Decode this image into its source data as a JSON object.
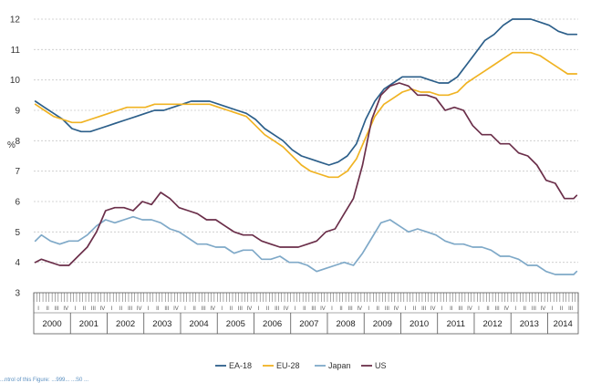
{
  "chart_data": {
    "type": "line",
    "ylabel": "%",
    "ylim": [
      3,
      12
    ],
    "yticks": [
      3,
      4,
      5,
      6,
      7,
      8,
      9,
      10,
      11,
      12
    ],
    "grid": "horizontal-dotted",
    "legend": "bottom",
    "years": [
      "2000",
      "2001",
      "2002",
      "2003",
      "2004",
      "2005",
      "2006",
      "2007",
      "2008",
      "2009",
      "2010",
      "2011",
      "2012",
      "2013",
      "2014"
    ],
    "quarter_labels": [
      "I",
      "II",
      "III",
      "IV"
    ],
    "x_start": "2000-01",
    "x_end": "2014-10",
    "series": [
      {
        "name": "EA-18",
        "color": "#2c5f8a",
        "points": [
          [
            "2000-01",
            9.3
          ],
          [
            "2000-04",
            9.1
          ],
          [
            "2000-07",
            8.9
          ],
          [
            "2000-10",
            8.7
          ],
          [
            "2001-01",
            8.4
          ],
          [
            "2001-04",
            8.3
          ],
          [
            "2001-07",
            8.3
          ],
          [
            "2001-10",
            8.4
          ],
          [
            "2002-01",
            8.5
          ],
          [
            "2002-04",
            8.6
          ],
          [
            "2002-07",
            8.7
          ],
          [
            "2002-10",
            8.8
          ],
          [
            "2003-01",
            8.9
          ],
          [
            "2003-04",
            9.0
          ],
          [
            "2003-07",
            9.0
          ],
          [
            "2003-10",
            9.1
          ],
          [
            "2004-01",
            9.2
          ],
          [
            "2004-04",
            9.3
          ],
          [
            "2004-07",
            9.3
          ],
          [
            "2004-10",
            9.3
          ],
          [
            "2005-01",
            9.2
          ],
          [
            "2005-04",
            9.1
          ],
          [
            "2005-07",
            9.0
          ],
          [
            "2005-10",
            8.9
          ],
          [
            "2006-01",
            8.7
          ],
          [
            "2006-04",
            8.4
          ],
          [
            "2006-07",
            8.2
          ],
          [
            "2006-10",
            8.0
          ],
          [
            "2007-01",
            7.7
          ],
          [
            "2007-04",
            7.5
          ],
          [
            "2007-07",
            7.4
          ],
          [
            "2007-10",
            7.3
          ],
          [
            "2008-01",
            7.2
          ],
          [
            "2008-04",
            7.3
          ],
          [
            "2008-07",
            7.5
          ],
          [
            "2008-10",
            7.9
          ],
          [
            "2009-01",
            8.7
          ],
          [
            "2009-04",
            9.3
          ],
          [
            "2009-07",
            9.7
          ],
          [
            "2009-10",
            9.9
          ],
          [
            "2010-01",
            10.1
          ],
          [
            "2010-04",
            10.1
          ],
          [
            "2010-07",
            10.1
          ],
          [
            "2010-10",
            10.0
          ],
          [
            "2011-01",
            9.9
          ],
          [
            "2011-04",
            9.9
          ],
          [
            "2011-07",
            10.1
          ],
          [
            "2011-10",
            10.5
          ],
          [
            "2012-01",
            10.9
          ],
          [
            "2012-04",
            11.3
          ],
          [
            "2012-07",
            11.5
          ],
          [
            "2012-10",
            11.8
          ],
          [
            "2013-01",
            12.0
          ],
          [
            "2013-04",
            12.0
          ],
          [
            "2013-07",
            12.0
          ],
          [
            "2013-10",
            11.9
          ],
          [
            "2014-01",
            11.8
          ],
          [
            "2014-04",
            11.6
          ],
          [
            "2014-07",
            11.5
          ],
          [
            "2014-10",
            11.5
          ]
        ]
      },
      {
        "name": "EU-28",
        "color": "#f0b323",
        "points": [
          [
            "2000-01",
            9.2
          ],
          [
            "2000-04",
            9.0
          ],
          [
            "2000-07",
            8.8
          ],
          [
            "2000-10",
            8.7
          ],
          [
            "2001-01",
            8.6
          ],
          [
            "2001-04",
            8.6
          ],
          [
            "2001-07",
            8.7
          ],
          [
            "2001-10",
            8.8
          ],
          [
            "2002-01",
            8.9
          ],
          [
            "2002-04",
            9.0
          ],
          [
            "2002-07",
            9.1
          ],
          [
            "2002-10",
            9.1
          ],
          [
            "2003-01",
            9.1
          ],
          [
            "2003-04",
            9.2
          ],
          [
            "2003-07",
            9.2
          ],
          [
            "2003-10",
            9.2
          ],
          [
            "2004-01",
            9.2
          ],
          [
            "2004-04",
            9.2
          ],
          [
            "2004-07",
            9.2
          ],
          [
            "2004-10",
            9.2
          ],
          [
            "2005-01",
            9.1
          ],
          [
            "2005-04",
            9.0
          ],
          [
            "2005-07",
            8.9
          ],
          [
            "2005-10",
            8.8
          ],
          [
            "2006-01",
            8.5
          ],
          [
            "2006-04",
            8.2
          ],
          [
            "2006-07",
            8.0
          ],
          [
            "2006-10",
            7.8
          ],
          [
            "2007-01",
            7.5
          ],
          [
            "2007-04",
            7.2
          ],
          [
            "2007-07",
            7.0
          ],
          [
            "2007-10",
            6.9
          ],
          [
            "2008-01",
            6.8
          ],
          [
            "2008-04",
            6.8
          ],
          [
            "2008-07",
            7.0
          ],
          [
            "2008-10",
            7.4
          ],
          [
            "2009-01",
            8.1
          ],
          [
            "2009-04",
            8.8
          ],
          [
            "2009-07",
            9.2
          ],
          [
            "2009-10",
            9.4
          ],
          [
            "2010-01",
            9.6
          ],
          [
            "2010-04",
            9.7
          ],
          [
            "2010-07",
            9.6
          ],
          [
            "2010-10",
            9.6
          ],
          [
            "2011-01",
            9.5
          ],
          [
            "2011-04",
            9.5
          ],
          [
            "2011-07",
            9.6
          ],
          [
            "2011-10",
            9.9
          ],
          [
            "2012-01",
            10.1
          ],
          [
            "2012-04",
            10.3
          ],
          [
            "2012-07",
            10.5
          ],
          [
            "2012-10",
            10.7
          ],
          [
            "2013-01",
            10.9
          ],
          [
            "2013-04",
            10.9
          ],
          [
            "2013-07",
            10.9
          ],
          [
            "2013-10",
            10.8
          ],
          [
            "2014-01",
            10.6
          ],
          [
            "2014-04",
            10.4
          ],
          [
            "2014-07",
            10.2
          ],
          [
            "2014-10",
            10.2
          ]
        ]
      },
      {
        "name": "Japan",
        "color": "#7fa9c8",
        "points": [
          [
            "2000-01",
            4.7
          ],
          [
            "2000-03",
            4.9
          ],
          [
            "2000-06",
            4.7
          ],
          [
            "2000-09",
            4.6
          ],
          [
            "2000-12",
            4.7
          ],
          [
            "2001-03",
            4.7
          ],
          [
            "2001-06",
            4.9
          ],
          [
            "2001-09",
            5.2
          ],
          [
            "2001-12",
            5.4
          ],
          [
            "2002-03",
            5.3
          ],
          [
            "2002-06",
            5.4
          ],
          [
            "2002-09",
            5.5
          ],
          [
            "2002-12",
            5.4
          ],
          [
            "2003-03",
            5.4
          ],
          [
            "2003-06",
            5.3
          ],
          [
            "2003-09",
            5.1
          ],
          [
            "2003-12",
            5.0
          ],
          [
            "2004-03",
            4.8
          ],
          [
            "2004-06",
            4.6
          ],
          [
            "2004-09",
            4.6
          ],
          [
            "2004-12",
            4.5
          ],
          [
            "2005-03",
            4.5
          ],
          [
            "2005-06",
            4.3
          ],
          [
            "2005-09",
            4.4
          ],
          [
            "2005-12",
            4.4
          ],
          [
            "2006-03",
            4.1
          ],
          [
            "2006-06",
            4.1
          ],
          [
            "2006-09",
            4.2
          ],
          [
            "2006-12",
            4.0
          ],
          [
            "2007-03",
            4.0
          ],
          [
            "2007-06",
            3.9
          ],
          [
            "2007-09",
            3.7
          ],
          [
            "2007-12",
            3.8
          ],
          [
            "2008-03",
            3.9
          ],
          [
            "2008-06",
            4.0
          ],
          [
            "2008-09",
            3.9
          ],
          [
            "2008-12",
            4.3
          ],
          [
            "2009-03",
            4.8
          ],
          [
            "2009-06",
            5.3
          ],
          [
            "2009-09",
            5.4
          ],
          [
            "2009-12",
            5.2
          ],
          [
            "2010-03",
            5.0
          ],
          [
            "2010-06",
            5.1
          ],
          [
            "2010-09",
            5.0
          ],
          [
            "2010-12",
            4.9
          ],
          [
            "2011-03",
            4.7
          ],
          [
            "2011-06",
            4.6
          ],
          [
            "2011-09",
            4.6
          ],
          [
            "2011-12",
            4.5
          ],
          [
            "2012-03",
            4.5
          ],
          [
            "2012-06",
            4.4
          ],
          [
            "2012-09",
            4.2
          ],
          [
            "2012-12",
            4.2
          ],
          [
            "2013-03",
            4.1
          ],
          [
            "2013-06",
            3.9
          ],
          [
            "2013-09",
            3.9
          ],
          [
            "2013-12",
            3.7
          ],
          [
            "2014-03",
            3.6
          ],
          [
            "2014-06",
            3.6
          ],
          [
            "2014-09",
            3.6
          ],
          [
            "2014-10",
            3.7
          ]
        ]
      },
      {
        "name": "US",
        "color": "#6b2f4a",
        "points": [
          [
            "2000-01",
            4.0
          ],
          [
            "2000-03",
            4.1
          ],
          [
            "2000-06",
            4.0
          ],
          [
            "2000-09",
            3.9
          ],
          [
            "2000-12",
            3.9
          ],
          [
            "2001-03",
            4.2
          ],
          [
            "2001-06",
            4.5
          ],
          [
            "2001-09",
            5.0
          ],
          [
            "2001-12",
            5.7
          ],
          [
            "2002-03",
            5.8
          ],
          [
            "2002-06",
            5.8
          ],
          [
            "2002-09",
            5.7
          ],
          [
            "2002-12",
            6.0
          ],
          [
            "2003-03",
            5.9
          ],
          [
            "2003-06",
            6.3
          ],
          [
            "2003-09",
            6.1
          ],
          [
            "2003-12",
            5.8
          ],
          [
            "2004-03",
            5.7
          ],
          [
            "2004-06",
            5.6
          ],
          [
            "2004-09",
            5.4
          ],
          [
            "2004-12",
            5.4
          ],
          [
            "2005-03",
            5.2
          ],
          [
            "2005-06",
            5.0
          ],
          [
            "2005-09",
            4.9
          ],
          [
            "2005-12",
            4.9
          ],
          [
            "2006-03",
            4.7
          ],
          [
            "2006-06",
            4.6
          ],
          [
            "2006-09",
            4.5
          ],
          [
            "2006-12",
            4.5
          ],
          [
            "2007-03",
            4.5
          ],
          [
            "2007-06",
            4.6
          ],
          [
            "2007-09",
            4.7
          ],
          [
            "2007-12",
            5.0
          ],
          [
            "2008-03",
            5.1
          ],
          [
            "2008-06",
            5.6
          ],
          [
            "2008-09",
            6.1
          ],
          [
            "2008-12",
            7.2
          ],
          [
            "2009-03",
            8.7
          ],
          [
            "2009-06",
            9.5
          ],
          [
            "2009-09",
            9.8
          ],
          [
            "2009-12",
            9.9
          ],
          [
            "2010-03",
            9.8
          ],
          [
            "2010-06",
            9.5
          ],
          [
            "2010-09",
            9.5
          ],
          [
            "2010-12",
            9.4
          ],
          [
            "2011-03",
            9.0
          ],
          [
            "2011-06",
            9.1
          ],
          [
            "2011-09",
            9.0
          ],
          [
            "2011-12",
            8.5
          ],
          [
            "2012-03",
            8.2
          ],
          [
            "2012-06",
            8.2
          ],
          [
            "2012-09",
            7.9
          ],
          [
            "2012-12",
            7.9
          ],
          [
            "2013-03",
            7.6
          ],
          [
            "2013-06",
            7.5
          ],
          [
            "2013-09",
            7.2
          ],
          [
            "2013-12",
            6.7
          ],
          [
            "2014-03",
            6.6
          ],
          [
            "2014-06",
            6.1
          ],
          [
            "2014-09",
            6.1
          ],
          [
            "2014-10",
            6.2
          ]
        ]
      }
    ]
  },
  "footnote": {
    "text": "...ntrol of this Figure: ...999... ...S0 ..."
  }
}
